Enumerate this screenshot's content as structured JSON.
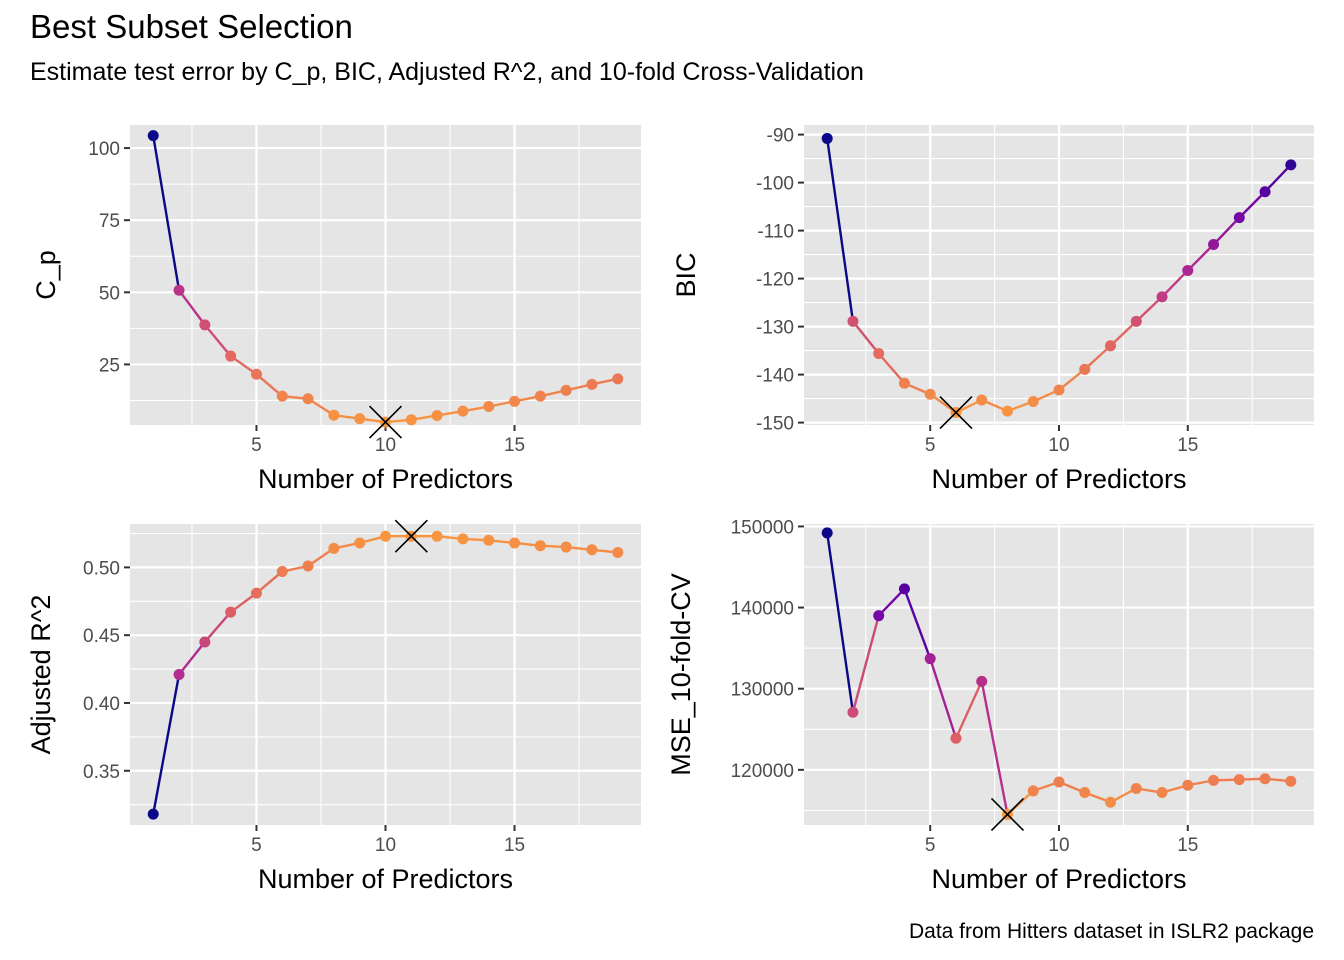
{
  "title": "Best Subset Selection",
  "subtitle": "Estimate test error by C_p, BIC, Adjusted R^2, and 10-fold Cross-Validation",
  "caption": "Data from Hitters dataset in ISLR2 package",
  "colors": {
    "panel_bg": "#E5E5E5",
    "grid": "#FFFFFF",
    "low": "#0D0887",
    "high": "#F89540",
    "marker": "#000000"
  },
  "chart_data": [
    {
      "type": "line",
      "xlabel": "Number of Predictors",
      "ylabel": "C_p",
      "x": [
        1,
        2,
        3,
        4,
        5,
        6,
        7,
        8,
        9,
        10,
        11,
        12,
        13,
        14,
        15,
        16,
        17,
        18,
        19
      ],
      "y": [
        104.3,
        50.7,
        38.7,
        27.9,
        21.6,
        14.0,
        13.1,
        7.4,
        6.2,
        5.0,
        5.8,
        7.3,
        8.8,
        10.4,
        12.2,
        14.0,
        16.0,
        18.1,
        20.0
      ],
      "xlim": [
        0.1,
        19.9
      ],
      "ylim": [
        4.0,
        108.0
      ],
      "x_ticks": [
        5,
        10,
        15
      ],
      "y_ticks": [
        25,
        50,
        75,
        100
      ],
      "best_index": 9,
      "color_mode": "low_is_good",
      "color_range": [
        5.0,
        104.3
      ]
    },
    {
      "type": "line",
      "xlabel": "Number of Predictors",
      "ylabel": "BIC",
      "x": [
        1,
        2,
        3,
        4,
        5,
        6,
        7,
        8,
        9,
        10,
        11,
        12,
        13,
        14,
        15,
        16,
        17,
        18,
        19
      ],
      "y": [
        -90.8,
        -128.9,
        -135.6,
        -141.8,
        -144.1,
        -147.9,
        -145.3,
        -147.6,
        -145.6,
        -143.2,
        -138.9,
        -134.0,
        -128.9,
        -123.8,
        -118.3,
        -112.9,
        -107.3,
        -101.9,
        -96.3
      ],
      "xlim": [
        0.1,
        19.9
      ],
      "ylim": [
        -150.5,
        -88.0
      ],
      "x_ticks": [
        5,
        10,
        15
      ],
      "y_ticks": [
        -90,
        -100,
        -110,
        -120,
        -130,
        -140,
        -150
      ],
      "best_index": 5,
      "color_mode": "low_is_good",
      "color_range": [
        -147.9,
        -90.8
      ]
    },
    {
      "type": "line",
      "xlabel": "Number of Predictors",
      "ylabel": "Adjusted R^2",
      "x": [
        1,
        2,
        3,
        4,
        5,
        6,
        7,
        8,
        9,
        10,
        11,
        12,
        13,
        14,
        15,
        16,
        17,
        18,
        19
      ],
      "y": [
        0.318,
        0.421,
        0.445,
        0.467,
        0.481,
        0.497,
        0.501,
        0.514,
        0.518,
        0.523,
        0.523,
        0.523,
        0.521,
        0.52,
        0.518,
        0.516,
        0.515,
        0.513,
        0.511
      ],
      "xlim": [
        0.1,
        19.9
      ],
      "ylim": [
        0.31,
        0.532
      ],
      "x_ticks": [
        5,
        10,
        15
      ],
      "y_ticks": [
        0.35,
        0.4,
        0.45,
        0.5
      ],
      "y_tick_labels": [
        "0.35",
        "0.40",
        "0.45",
        "0.50"
      ],
      "best_index": 10,
      "color_mode": "high_is_good",
      "color_range": [
        0.318,
        0.523
      ]
    },
    {
      "type": "line",
      "xlabel": "Number of Predictors",
      "ylabel": "MSE_10-fold-CV",
      "x": [
        1,
        2,
        3,
        4,
        5,
        6,
        7,
        8,
        9,
        10,
        11,
        12,
        13,
        14,
        15,
        16,
        17,
        18,
        19
      ],
      "y": [
        149200,
        127100,
        139000,
        142300,
        133700,
        123900,
        130900,
        114500,
        117400,
        118500,
        117200,
        116000,
        117700,
        117200,
        118100,
        118700,
        118800,
        118900,
        118600
      ],
      "xlim": [
        0.1,
        19.9
      ],
      "ylim": [
        113200,
        150300
      ],
      "x_ticks": [
        5,
        10,
        15
      ],
      "y_ticks": [
        120000,
        130000,
        140000,
        150000
      ],
      "best_index": 7,
      "color_mode": "low_is_good",
      "color_range": [
        114500,
        149200
      ]
    }
  ]
}
